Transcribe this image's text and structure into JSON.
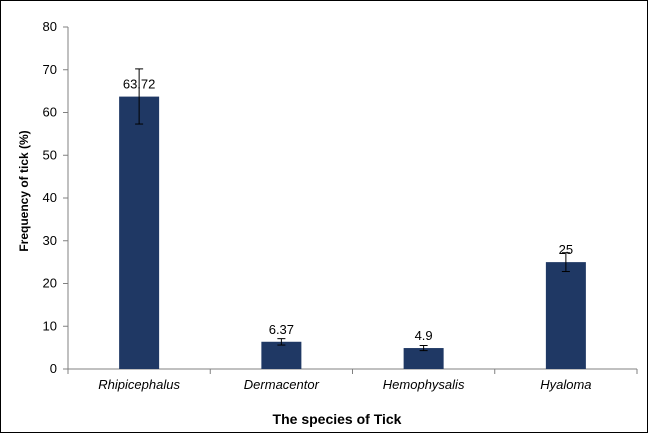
{
  "chart_data": {
    "type": "bar",
    "categories": [
      "Rhipicephalus",
      "Dermacentor",
      "Hemophysalis",
      "Hyaloma"
    ],
    "values": [
      63.72,
      6.37,
      4.9,
      25
    ],
    "data_labels": [
      "63.72",
      "6.37",
      "4.9",
      "25"
    ],
    "error_bars": [
      {
        "low": 57.3,
        "high": 70.2
      },
      {
        "low": 5.6,
        "high": 7.1
      },
      {
        "low": 4.3,
        "high": 5.5
      },
      {
        "low": 22.8,
        "high": 27.2
      }
    ],
    "xlabel": "The species of Tick",
    "ylabel": "Frequency of tick (%)",
    "ylim": [
      0,
      80
    ],
    "yticks": [
      0,
      10,
      20,
      30,
      40,
      50,
      60,
      70,
      80
    ],
    "grid": false,
    "legend": "none",
    "bar_color": "#1f3864"
  }
}
